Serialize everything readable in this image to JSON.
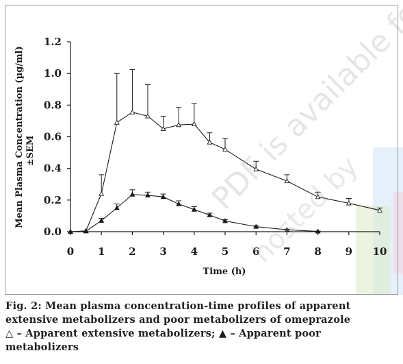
{
  "chart_data": {
    "type": "line",
    "ylabel_line1": "Mean Plasma Concentration (µg/ml)",
    "ylabel_line2": "±SEM",
    "xlabel": "Time (h)",
    "xlim": [
      0,
      10
    ],
    "ylim": [
      0,
      1.2
    ],
    "xticks": [
      0,
      1,
      2,
      3,
      4,
      5,
      6,
      7,
      8,
      9,
      10
    ],
    "yticks": [
      "0.0",
      "0.2",
      "0.4",
      "0.6",
      "0.8",
      "1.0",
      "1.2"
    ],
    "ytick_values": [
      0,
      0.2,
      0.4,
      0.6,
      0.8,
      1.0,
      1.2
    ],
    "grid": false,
    "series": [
      {
        "marker": "open-triangle",
        "color": "#1a1a1a",
        "x": [
          0,
          0.5,
          1,
          1.5,
          2,
          2.5,
          3,
          3.5,
          4,
          4.5,
          5,
          6,
          7,
          8,
          9,
          10
        ],
        "y": [
          0,
          0.005,
          0.24,
          0.69,
          0.755,
          0.73,
          0.65,
          0.675,
          0.68,
          0.565,
          0.52,
          0.395,
          0.32,
          0.22,
          0.18,
          0.135
        ],
        "err": [
          0,
          0,
          0.12,
          0.31,
          0.27,
          0.2,
          0.08,
          0.11,
          0.13,
          0.06,
          0.07,
          0.05,
          0.04,
          0.03,
          0.03,
          0.015
        ]
      },
      {
        "marker": "filled-triangle",
        "color": "#1a1a1a",
        "x": [
          0,
          0.5,
          1,
          1.5,
          2,
          2.5,
          3,
          3.5,
          4,
          4.5,
          5,
          6,
          7,
          8
        ],
        "y": [
          0,
          0.003,
          0.07,
          0.15,
          0.235,
          0.23,
          0.22,
          0.175,
          0.14,
          0.105,
          0.068,
          0.032,
          0.012,
          0.002
        ],
        "err": [
          0,
          0,
          0.015,
          0.025,
          0.03,
          0.02,
          0.018,
          0.02,
          0.018,
          0.012,
          0.008,
          0.005,
          0.004,
          0.002
        ]
      }
    ]
  },
  "caption": {
    "line1": "Fig. 2: Mean plasma concentration-time profiles of apparent",
    "line2": "extensive metabolizers and poor metabolizers of omeprazole",
    "line3": "△ – Apparent extensive metabolizers; ▲ – Apparent poor",
    "line4": "metabolizers"
  },
  "watermark": {
    "text": "PDF is available for",
    "text2": "hosted by"
  },
  "colors": {
    "ink": "#1a1a1a",
    "frame": "#9a9a9a",
    "band_blue": "#cfe4f5",
    "band_green": "#dcebc8",
    "band_pink": "#f6d5df"
  }
}
